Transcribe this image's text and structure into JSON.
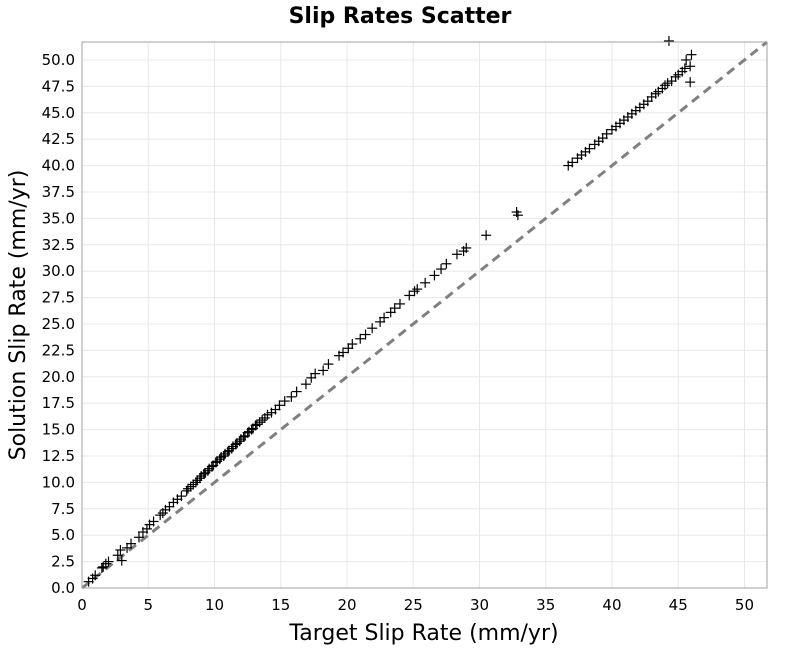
{
  "chart_data": {
    "type": "scatter",
    "title": "Slip Rates Scatter",
    "xlabel": "Target Slip Rate (mm/yr)",
    "ylabel": "Solution Slip Rate (mm/yr)",
    "xlim": [
      0,
      51.7
    ],
    "ylim": [
      0,
      51.7
    ],
    "x_ticks": [
      0,
      5,
      10,
      15,
      20,
      25,
      30,
      35,
      40,
      45,
      50
    ],
    "y_ticks": [
      0.0,
      2.5,
      5.0,
      7.5,
      10.0,
      12.5,
      15.0,
      17.5,
      20.0,
      22.5,
      25.0,
      27.5,
      30.0,
      32.5,
      35.0,
      37.5,
      40.0,
      42.5,
      45.0,
      47.5,
      50.0
    ],
    "x_tick_labels": [
      "0",
      "5",
      "10",
      "15",
      "20",
      "25",
      "30",
      "35",
      "40",
      "45",
      "50"
    ],
    "y_tick_labels": [
      "0.0",
      "2.5",
      "5.0",
      "7.5",
      "10.0",
      "12.5",
      "15.0",
      "17.5",
      "20.0",
      "22.5",
      "25.0",
      "27.5",
      "30.0",
      "32.5",
      "35.0",
      "37.5",
      "40.0",
      "42.5",
      "45.0",
      "47.5",
      "50.0"
    ],
    "grid": true,
    "marker": "+",
    "marker_color": "#000000",
    "reference_line": {
      "style": "dashed",
      "color": "#808080",
      "x": [
        0,
        51.7
      ],
      "y": [
        0,
        51.7
      ]
    },
    "series": [
      {
        "x": [
          0.5,
          0.8,
          1.0,
          1.5,
          1.6,
          1.8,
          2.0,
          2.7,
          2.9,
          3.0,
          3.4,
          3.7,
          4.3,
          4.6,
          4.9,
          5.1,
          5.4,
          5.9,
          6.1,
          6.3,
          6.6,
          6.9,
          7.2,
          7.5,
          7.9,
          8.0,
          8.2,
          8.4,
          8.6,
          8.7,
          8.9,
          9.0,
          9.2,
          9.3,
          9.5,
          9.6,
          9.8,
          9.9,
          10.1,
          10.2,
          10.4,
          10.5,
          10.7,
          10.8,
          11.0,
          11.1,
          11.3,
          11.4,
          11.6,
          11.7,
          11.9,
          12.0,
          12.2,
          12.3,
          12.5,
          12.6,
          12.8,
          12.9,
          13.1,
          13.2,
          13.4,
          13.6,
          13.8,
          14.0,
          14.3,
          14.6,
          14.9,
          15.3,
          15.8,
          16.2,
          16.9,
          17.3,
          17.6,
          18.2,
          18.6,
          19.4,
          19.7,
          20.1,
          20.4,
          21.0,
          21.4,
          21.9,
          22.5,
          22.8,
          23.3,
          23.6,
          24.0,
          24.7,
          25.1,
          25.3,
          25.9,
          26.6,
          27.1,
          27.5,
          28.3,
          28.8,
          29.0,
          30.5,
          32.8,
          32.9,
          36.7,
          37.0,
          37.4,
          37.7,
          38.0,
          38.3,
          38.7,
          39.0,
          39.3,
          39.6,
          40.0,
          40.3,
          40.6,
          40.9,
          41.2,
          41.5,
          41.8,
          42.1,
          42.4,
          42.7,
          43.0,
          43.3,
          43.5,
          43.8,
          44.0,
          44.2,
          44.3,
          44.5,
          44.8,
          45.0,
          45.3,
          45.5,
          45.6,
          45.9,
          46.0,
          45.9
        ],
        "y": [
          0.6,
          0.9,
          1.2,
          1.9,
          2.0,
          2.3,
          2.5,
          3.1,
          3.6,
          2.6,
          3.8,
          4.2,
          4.8,
          5.3,
          5.6,
          6.0,
          6.3,
          6.9,
          7.1,
          7.4,
          7.7,
          8.1,
          8.4,
          8.7,
          9.2,
          9.4,
          9.6,
          9.8,
          10.0,
          10.2,
          10.4,
          10.6,
          10.8,
          10.9,
          11.1,
          11.3,
          11.5,
          11.6,
          11.9,
          12.0,
          12.2,
          12.4,
          12.5,
          12.7,
          12.9,
          13.0,
          13.2,
          13.4,
          13.6,
          13.7,
          13.9,
          14.1,
          14.3,
          14.4,
          14.7,
          14.8,
          15.0,
          15.1,
          15.4,
          15.5,
          15.7,
          15.9,
          16.1,
          16.4,
          16.6,
          16.9,
          17.3,
          17.7,
          18.1,
          18.6,
          19.3,
          19.9,
          20.3,
          20.6,
          21.2,
          22.0,
          22.3,
          22.7,
          23.1,
          23.6,
          24.0,
          24.6,
          25.2,
          25.6,
          26.1,
          26.5,
          26.9,
          27.7,
          28.1,
          28.3,
          28.9,
          29.6,
          30.2,
          30.7,
          31.6,
          31.9,
          32.2,
          33.4,
          35.6,
          35.3,
          40.0,
          40.3,
          40.7,
          41.0,
          41.3,
          41.6,
          42.0,
          42.3,
          42.6,
          43.0,
          43.4,
          43.7,
          44.0,
          44.3,
          44.6,
          44.9,
          45.2,
          45.5,
          45.8,
          46.1,
          46.5,
          46.8,
          47.0,
          47.3,
          47.6,
          47.8,
          51.8,
          48.0,
          48.4,
          48.6,
          48.9,
          49.2,
          50.0,
          49.4,
          50.5,
          47.9
        ]
      }
    ]
  }
}
